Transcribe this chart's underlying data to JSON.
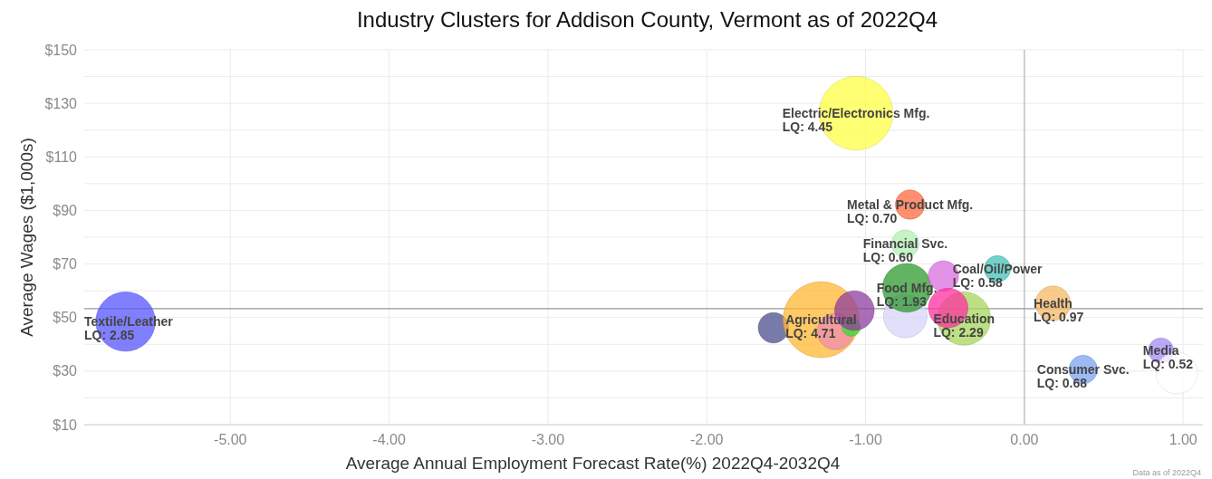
{
  "chart_data": {
    "type": "bubble",
    "title": "Industry Clusters for Addison County, Vermont as of 2022Q4",
    "xlabel": "Average Annual Employment Forecast Rate(%) 2022Q4-2032Q4",
    "ylabel": "Average Wages ($1,000s)",
    "annotations": [
      "Data as of 2022Q4",
      {
        "text": "LQ: 2.85",
        "x": -5.66,
        "y": 48.5
      },
      {
        "text": "LQ: 4.71",
        "x": -1.28,
        "y": 49.2
      },
      {
        "text": "LQ: 4.45",
        "x": -1.06,
        "y": 126.3
      },
      {
        "text": "LQ: 0.70",
        "x": -0.72,
        "y": 92.2
      },
      {
        "text": "LQ: 0.60",
        "x": -0.75,
        "y": 77.6
      },
      {
        "text": "LQ: 1.93",
        "x": -0.74,
        "y": 61.1
      },
      {
        "text": "LQ: 0.58",
        "x": -0.17,
        "y": 68.2
      },
      {
        "text": "LQ: 2.29",
        "x": -0.38,
        "y": 49.6
      },
      {
        "text": "LQ: 0.97",
        "x": 0.18,
        "y": 55.3
      },
      {
        "text": "LQ: 0.68",
        "x": 0.37,
        "y": 30.6
      },
      {
        "text": "LQ: 0.52",
        "x": 0.86,
        "y": 37.7
      }
    ],
    "xlim": [
      -5.92,
      1.17
    ],
    "xticks": [
      {
        "value": -5,
        "label": "-5.00"
      },
      {
        "value": -4,
        "label": "-4.00"
      },
      {
        "value": -3,
        "label": "-3.00"
      },
      {
        "value": -2,
        "label": "-2.00"
      },
      {
        "value": -1,
        "label": "-1.00"
      },
      {
        "value": 0,
        "label": "0.00"
      },
      {
        "value": 1,
        "label": "1.00"
      }
    ],
    "ylim": [
      10,
      150
    ],
    "yticks": [
      {
        "value": 10,
        "label": "$10"
      },
      {
        "value": 20,
        "label": null
      },
      {
        "value": 30,
        "label": "$30"
      },
      {
        "value": 40,
        "label": null
      },
      {
        "value": 50,
        "label": "$50"
      },
      {
        "value": 60,
        "label": null
      },
      {
        "value": 70,
        "label": "$70"
      },
      {
        "value": 80,
        "label": null
      },
      {
        "value": 90,
        "label": "$90"
      },
      {
        "value": 100,
        "label": null
      },
      {
        "value": 110,
        "label": "$110"
      },
      {
        "value": 120,
        "label": null
      },
      {
        "value": 130,
        "label": "$130"
      },
      {
        "value": 140,
        "label": null
      },
      {
        "value": 150,
        "label": "$150"
      }
    ],
    "grid": true,
    "ref_lines": [
      {
        "axis": "x",
        "value": 0,
        "color": "#bbbbbb"
      },
      {
        "axis": "y",
        "value": 53.3,
        "color": "#999999"
      }
    ],
    "series": [
      {
        "name": "Textile/Leather",
        "color": "#5555ff",
        "x": [
          -5.66
        ],
        "values": [
          48.5
        ],
        "sizes": [
          0.61
        ]
      },
      {
        "color": "#4b4f8c",
        "x": [
          -1.58
        ],
        "values": [
          46.2
        ],
        "sizes": [
          0.16
        ]
      },
      {
        "name": "Agricultural",
        "color": "#ffb733",
        "x": [
          -1.28
        ],
        "values": [
          49.2
        ],
        "sizes": [
          1
        ]
      },
      {
        "color": "#f08cb0",
        "x": [
          -1.19
        ],
        "values": [
          44.8
        ],
        "sizes": [
          0.23
        ]
      },
      {
        "color": "#33dd33",
        "x": [
          -1.09
        ],
        "values": [
          46.5
        ],
        "sizes": [
          0.06
        ]
      },
      {
        "color": "#8e3d9e",
        "x": [
          -1.07
        ],
        "values": [
          52.6
        ],
        "sizes": [
          0.27
        ]
      },
      {
        "color": "#d6d6fa",
        "x": [
          -0.75
        ],
        "values": [
          50.6
        ],
        "sizes": [
          0.33
        ]
      },
      {
        "name": "Electric/Electronics Mfg.",
        "color": "#ffff44",
        "x": [
          -1.06
        ],
        "values": [
          126.3
        ],
        "sizes": [
          0.94
        ]
      },
      {
        "name": "Metal & Product Mfg.",
        "color": "#ff6a3d",
        "x": [
          -0.72
        ],
        "values": [
          92.2
        ],
        "sizes": [
          0.15
        ]
      },
      {
        "name": "Financial Svc.",
        "color": "#b4f0b4",
        "x": [
          -0.75
        ],
        "values": [
          77.6
        ],
        "sizes": [
          0.13
        ]
      },
      {
        "name": "Food Mfg.",
        "color": "#2e9a2e",
        "x": [
          -0.74
        ],
        "values": [
          61.1
        ],
        "sizes": [
          0.41
        ]
      },
      {
        "color": "#d86fe0",
        "x": [
          -0.51
        ],
        "values": [
          65.5
        ],
        "sizes": [
          0.16
        ]
      },
      {
        "name": "Coal/Oil/Power",
        "color": "#44c2bb",
        "x": [
          -0.17
        ],
        "values": [
          68.2
        ],
        "sizes": [
          0.12
        ]
      },
      {
        "name": "Education",
        "color": "#a6d65a",
        "x": [
          -0.38
        ],
        "values": [
          49.6
        ],
        "sizes": [
          0.49
        ]
      },
      {
        "color": "#ff2fa0",
        "x": [
          -0.48
        ],
        "values": [
          53.6
        ],
        "sizes": [
          0.27
        ]
      },
      {
        "name": "Health",
        "color": "#f5b865",
        "x": [
          0.18
        ],
        "values": [
          55.3
        ],
        "sizes": [
          0.21
        ]
      },
      {
        "name": "Consumer Svc.",
        "color": "#7ba4f0",
        "x": [
          0.37
        ],
        "values": [
          30.6
        ],
        "sizes": [
          0.14
        ]
      },
      {
        "name": "Media",
        "color": "#a48cf5",
        "x": [
          0.86
        ],
        "values": [
          37.7
        ],
        "sizes": [
          0.11
        ]
      },
      {
        "color": "#ffffff",
        "x": [
          0.96
        ],
        "values": [
          29.3
        ],
        "sizes": [
          0.3
        ]
      }
    ]
  }
}
